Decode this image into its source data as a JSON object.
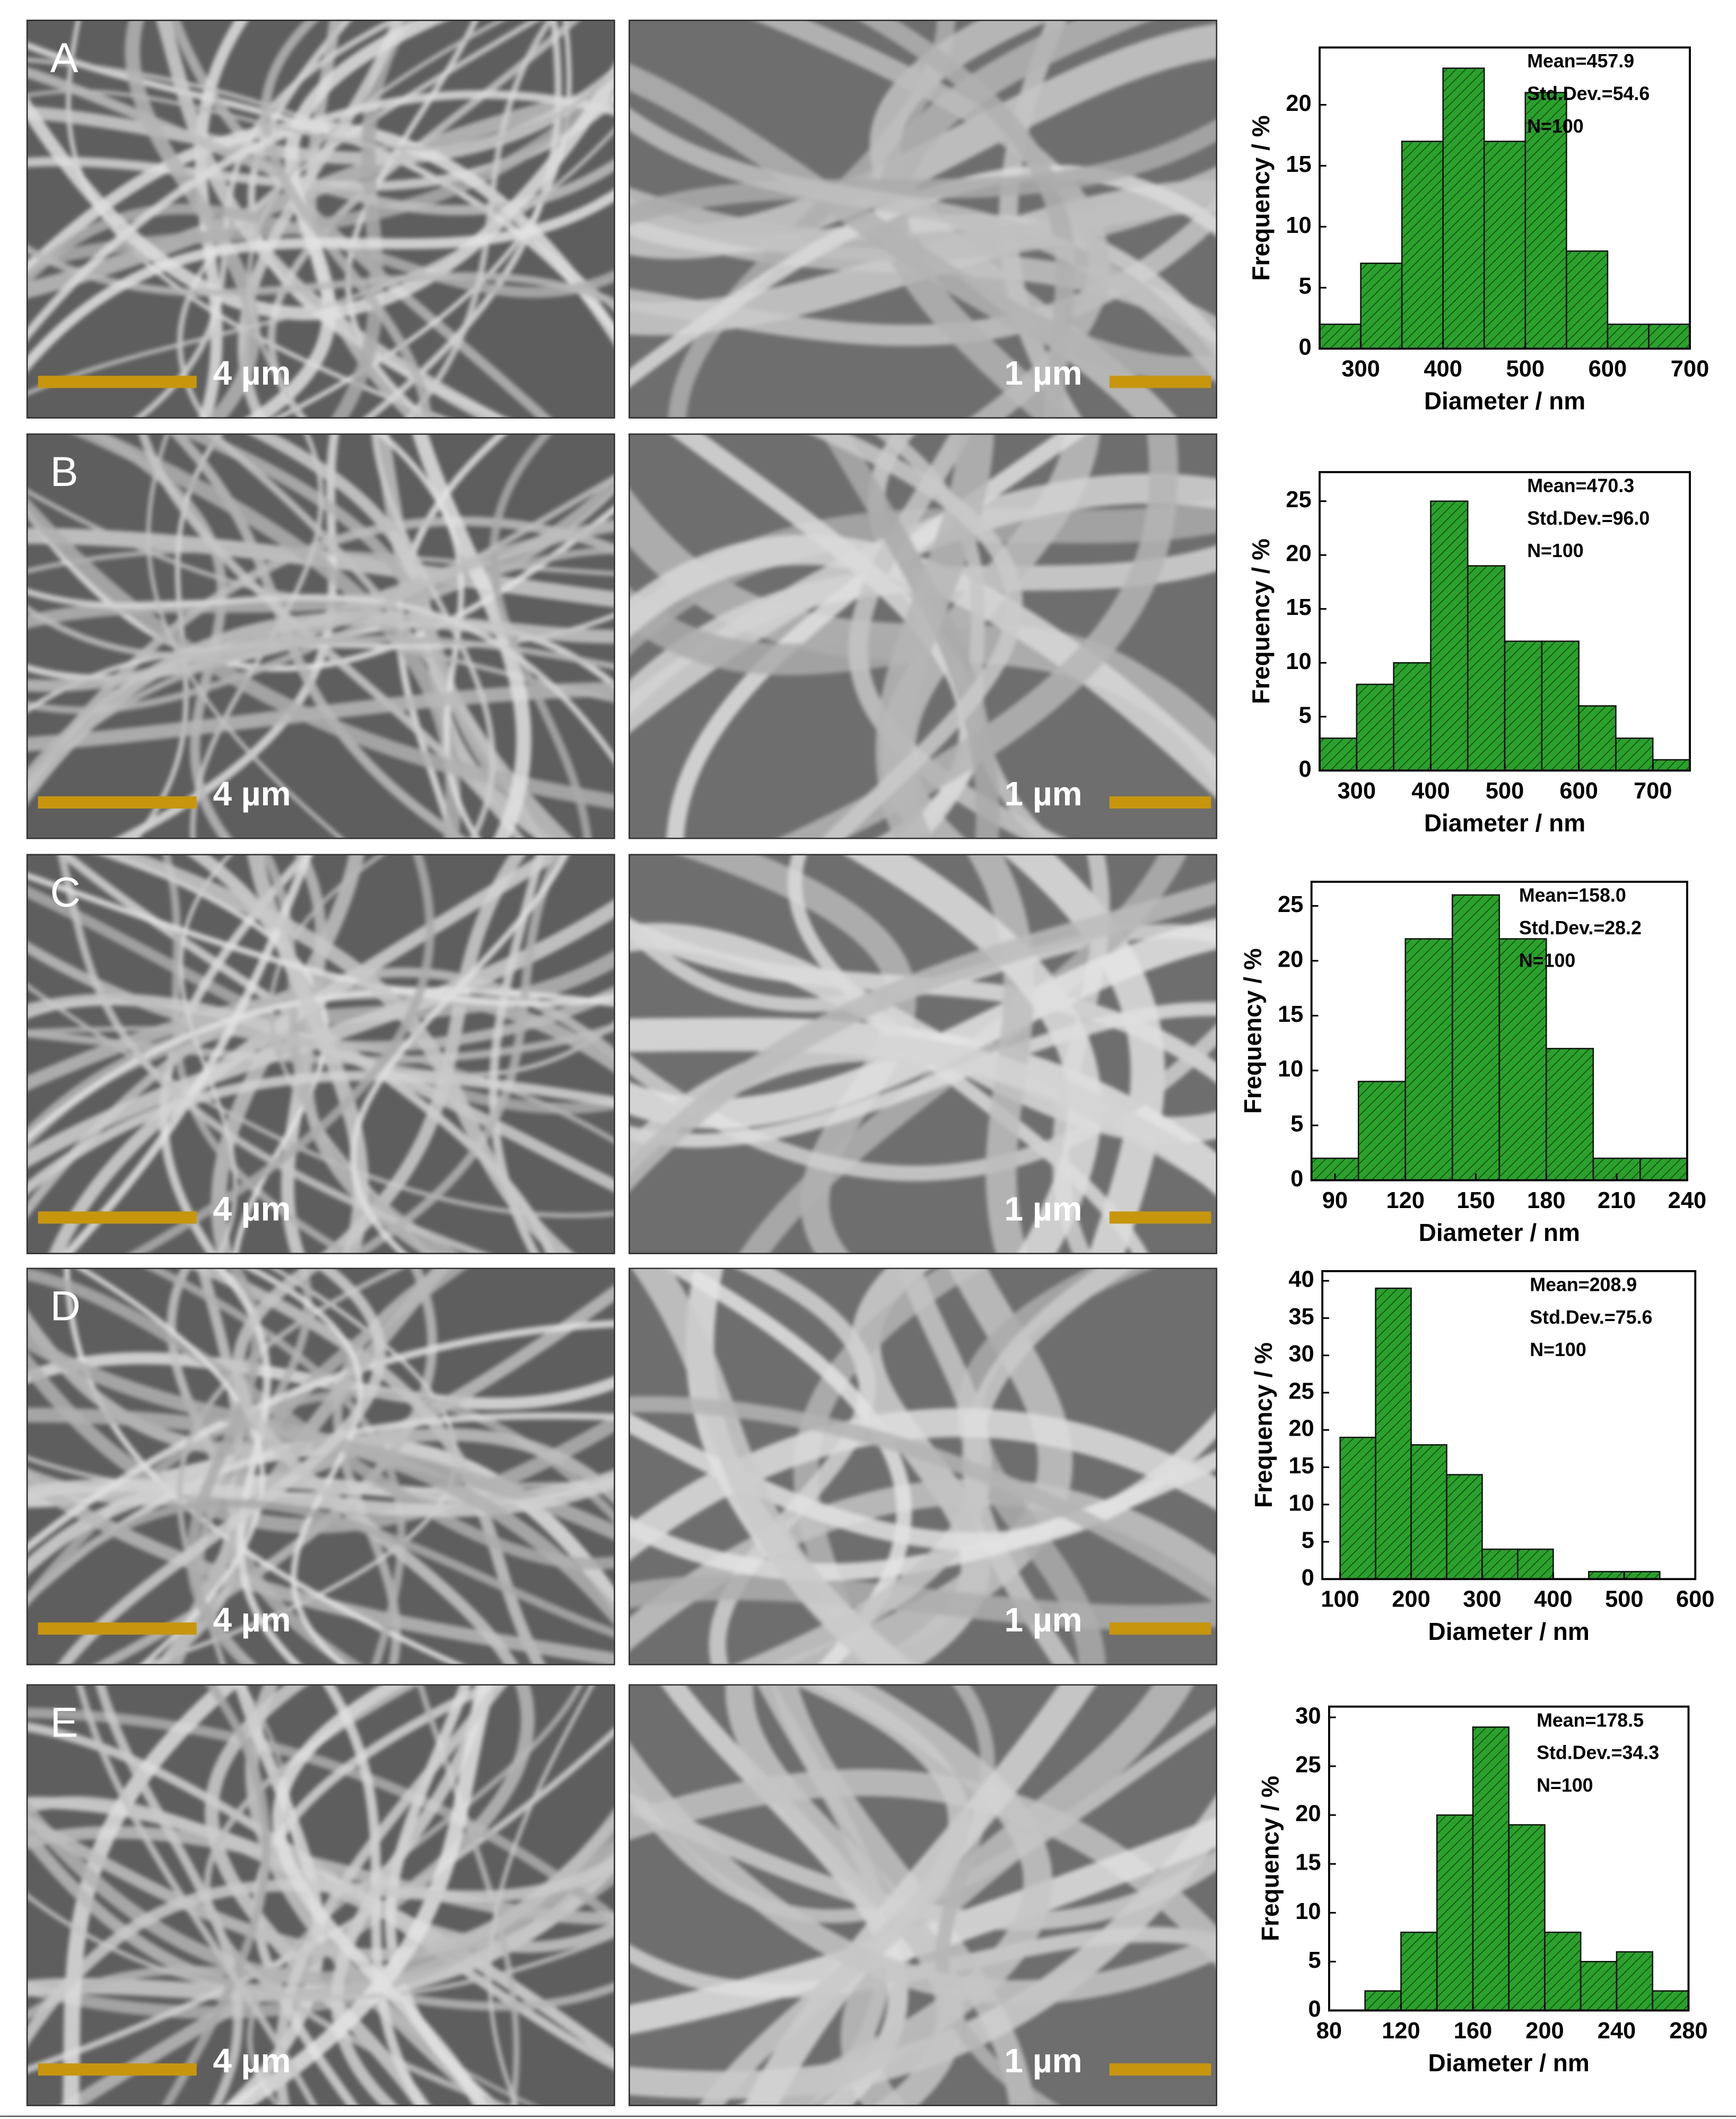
{
  "panels": [
    {
      "label": "A",
      "scale_bars": [
        "4 µm",
        "1 µm"
      ]
    },
    {
      "label": "B",
      "scale_bars": [
        "4 µm",
        "1 µm"
      ]
    },
    {
      "label": "C",
      "scale_bars": [
        "4 µm",
        "1 µm"
      ]
    },
    {
      "label": "D",
      "scale_bars": [
        "4 µm",
        "1 µm"
      ]
    },
    {
      "label": "E",
      "scale_bars": [
        "4 µm",
        "1 µm"
      ]
    }
  ],
  "chart_data": [
    {
      "type": "histogram",
      "xlabel": "Diameter / nm",
      "ylabel": "Frequency / %",
      "annotations": [
        "Mean=457.9",
        "Std.Dev.=54.6",
        "N=100"
      ],
      "bins": [
        250,
        300,
        350,
        400,
        450,
        500,
        550,
        600,
        650,
        700
      ],
      "values": [
        2,
        7,
        17,
        23,
        17,
        21,
        8,
        2,
        2
      ],
      "color": "#2ca02c",
      "hatch": true,
      "xlim": [
        250,
        700
      ],
      "xticks": [
        300,
        400,
        500,
        600,
        700
      ],
      "ylim": [
        0,
        24.7
      ],
      "yticks": [
        0,
        5,
        10,
        15,
        20
      ]
    },
    {
      "type": "histogram",
      "xlabel": "Diameter / nm",
      "ylabel": "Frequency / %",
      "annotations": [
        "Mean=470.3",
        "Std.Dev.=96.0",
        "N=100"
      ],
      "bins": [
        250,
        300,
        350,
        400,
        450,
        500,
        550,
        600,
        650,
        700,
        750
      ],
      "values": [
        3,
        8,
        10,
        25,
        19,
        12,
        12,
        6,
        3,
        1
      ],
      "color": "#2ca02c",
      "hatch": true,
      "xlim": [
        250,
        750
      ],
      "xticks": [
        300,
        400,
        500,
        600,
        700
      ],
      "ylim": [
        0,
        27.7
      ],
      "yticks": [
        0,
        5,
        10,
        15,
        20,
        25
      ]
    },
    {
      "type": "histogram",
      "xlabel": "Diameter / nm",
      "ylabel": "Frequency / %",
      "annotations": [
        "Mean=158.0",
        "Std.Dev.=28.2",
        "N=100"
      ],
      "bins": [
        80,
        100,
        120,
        140,
        160,
        180,
        200,
        220,
        240
      ],
      "values": [
        2,
        9,
        22,
        26,
        22,
        12,
        2,
        2
      ],
      "color": "#2ca02c",
      "hatch": true,
      "xlim": [
        80,
        240
      ],
      "xticks": [
        90,
        120,
        150,
        180,
        210,
        240
      ],
      "ylim": [
        0,
        27.2
      ],
      "yticks": [
        0,
        5,
        10,
        15,
        20,
        25
      ]
    },
    {
      "type": "histogram",
      "xlabel": "Diameter / nm",
      "ylabel": "Frequency / %",
      "annotations": [
        "Mean=208.9",
        "Std.Dev.=75.6",
        "N=100"
      ],
      "bins": [
        100,
        150,
        200,
        250,
        300,
        350,
        400,
        450,
        500,
        550
      ],
      "values": [
        19,
        39,
        18,
        14,
        4,
        4,
        0,
        1,
        1
      ],
      "color": "#2ca02c",
      "hatch": true,
      "xlim": [
        75,
        600
      ],
      "xticks": [
        100,
        200,
        300,
        400,
        500,
        600
      ],
      "ylim": [
        0,
        41.3
      ],
      "yticks": [
        0,
        5,
        10,
        15,
        20,
        25,
        30,
        35,
        40
      ]
    },
    {
      "type": "histogram",
      "xlabel": "Diameter / nm",
      "ylabel": "Frequency / %",
      "annotations": [
        "Mean=178.5",
        "Std.Dev.=34.3",
        "N=100"
      ],
      "bins": [
        100,
        120,
        140,
        160,
        180,
        200,
        220,
        240,
        260,
        280
      ],
      "values": [
        2,
        8,
        20,
        29,
        19,
        8,
        5,
        6,
        2
      ],
      "color": "#2ca02c",
      "hatch": true,
      "xlim": [
        80,
        280
      ],
      "xticks": [
        80,
        120,
        160,
        200,
        240,
        280
      ],
      "ylim": [
        0,
        31.1
      ],
      "yticks": [
        0,
        5,
        10,
        15,
        20,
        25,
        30
      ]
    }
  ]
}
